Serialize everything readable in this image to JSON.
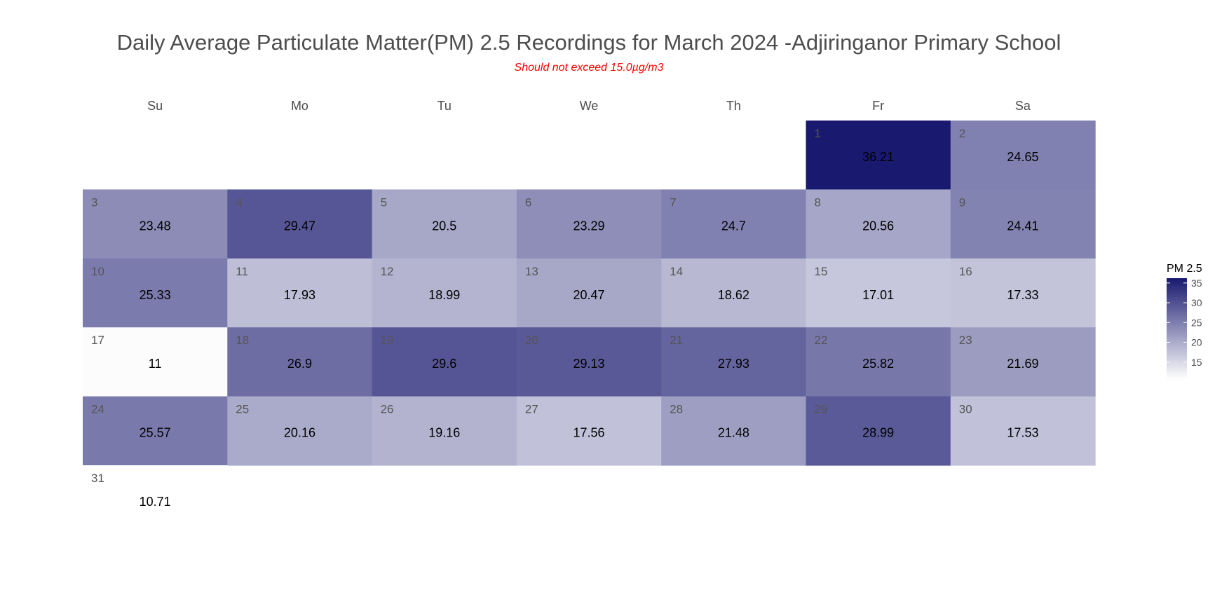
{
  "chart_data": {
    "type": "heatmap",
    "title": "Daily Average Particulate Matter(PM) 2.5 Recordings for March 2024 -Adjiringanor Primary School",
    "subtitle": "Should not exceed 15.0µg/m3",
    "weekdays": [
      "Su",
      "Mo",
      "Tu",
      "We",
      "Th",
      "Fr",
      "Sa"
    ],
    "first_weekday_index": 5,
    "days": [
      1,
      2,
      3,
      4,
      5,
      6,
      7,
      8,
      9,
      10,
      11,
      12,
      13,
      14,
      15,
      16,
      17,
      18,
      19,
      20,
      21,
      22,
      23,
      24,
      25,
      26,
      27,
      28,
      29,
      30,
      31
    ],
    "values": [
      36.21,
      24.65,
      23.48,
      29.47,
      20.5,
      23.29,
      24.7,
      20.56,
      24.41,
      25.33,
      17.93,
      18.99,
      20.47,
      18.62,
      17.01,
      17.33,
      11,
      26.9,
      29.6,
      29.13,
      27.93,
      25.82,
      21.69,
      25.57,
      20.16,
      19.16,
      17.56,
      21.48,
      28.99,
      17.53,
      10.71
    ],
    "value_labels": [
      "36.21",
      "24.65",
      "23.48",
      "29.47",
      "20.5",
      "23.29",
      "24.7",
      "20.56",
      "24.41",
      "25.33",
      "17.93",
      "18.99",
      "20.47",
      "18.62",
      "17.01",
      "17.33",
      "11",
      "26.9",
      "29.6",
      "29.13",
      "27.93",
      "25.82",
      "21.69",
      "25.57",
      "20.16",
      "19.16",
      "17.56",
      "21.48",
      "28.99",
      "17.53",
      "10.71"
    ],
    "legend": {
      "title": "PM 2.5",
      "ticks": [
        15,
        20,
        25,
        30,
        35
      ],
      "tick_labels": [
        "15",
        "20",
        "25",
        "30",
        "35"
      ],
      "position": "right"
    },
    "color_scale": {
      "min": 10.71,
      "max": 36.21,
      "low_color": "#ffffff",
      "high_color": "#191970"
    },
    "title_color": "#4d4d4d",
    "subtitle_color": "#ff0000"
  }
}
